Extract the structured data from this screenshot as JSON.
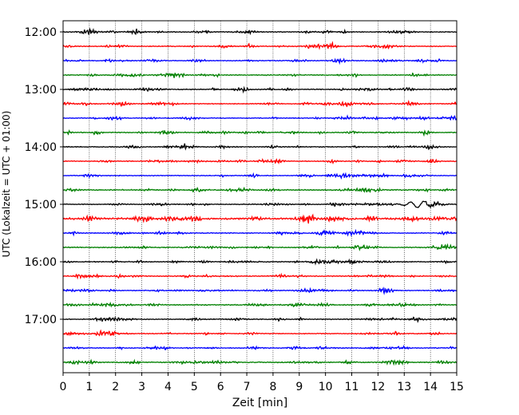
{
  "chart_data": {
    "type": "line",
    "title": "",
    "xlabel": "Zeit  [min]",
    "ylabel": "UTC (Lokalzeit = UTC + 01:00)",
    "xlim": [
      0,
      15
    ],
    "x_ticks": [
      0,
      1,
      2,
      3,
      4,
      5,
      6,
      7,
      8,
      9,
      10,
      11,
      12,
      13,
      14,
      15
    ],
    "y_ticks": [
      "12:00",
      "13:00",
      "14:00",
      "15:00",
      "16:00",
      "17:00"
    ],
    "grid": true,
    "traces_per_hour": 4,
    "trace_colors": [
      "#000000",
      "#ff0000",
      "#0000ff",
      "#008000"
    ],
    "traces": [
      {
        "start": "12:00",
        "amplitude": 0.28,
        "events": []
      },
      {
        "start": "12:15",
        "amplitude": 0.28,
        "events": []
      },
      {
        "start": "12:30",
        "amplitude": 0.26,
        "events": []
      },
      {
        "start": "12:45",
        "amplitude": 0.3,
        "events": []
      },
      {
        "start": "13:00",
        "amplitude": 0.3,
        "events": []
      },
      {
        "start": "13:15",
        "amplitude": 0.28,
        "events": []
      },
      {
        "start": "13:30",
        "amplitude": 0.26,
        "events": []
      },
      {
        "start": "13:45",
        "amplitude": 0.3,
        "events": []
      },
      {
        "start": "14:00",
        "amplitude": 0.28,
        "events": []
      },
      {
        "start": "14:15",
        "amplitude": 0.28,
        "events": []
      },
      {
        "start": "14:30",
        "amplitude": 0.26,
        "events": []
      },
      {
        "start": "14:45",
        "amplitude": 0.34,
        "events": []
      },
      {
        "start": "15:00",
        "amplitude": 0.26,
        "events": [
          {
            "t": 13.6,
            "amp": 0.7,
            "width": 0.6
          }
        ]
      },
      {
        "start": "15:15",
        "amplitude": 0.55,
        "events": []
      },
      {
        "start": "15:30",
        "amplitude": 0.3,
        "events": []
      },
      {
        "start": "15:45",
        "amplitude": 0.3,
        "events": []
      },
      {
        "start": "16:00",
        "amplitude": 0.3,
        "events": []
      },
      {
        "start": "16:15",
        "amplitude": 0.3,
        "events": []
      },
      {
        "start": "16:30",
        "amplitude": 0.28,
        "events": []
      },
      {
        "start": "16:45",
        "amplitude": 0.34,
        "events": []
      },
      {
        "start": "17:00",
        "amplitude": 0.28,
        "events": []
      },
      {
        "start": "17:15",
        "amplitude": 0.28,
        "events": []
      },
      {
        "start": "17:30",
        "amplitude": 0.28,
        "events": []
      },
      {
        "start": "17:45",
        "amplitude": 0.32,
        "events": []
      }
    ]
  }
}
